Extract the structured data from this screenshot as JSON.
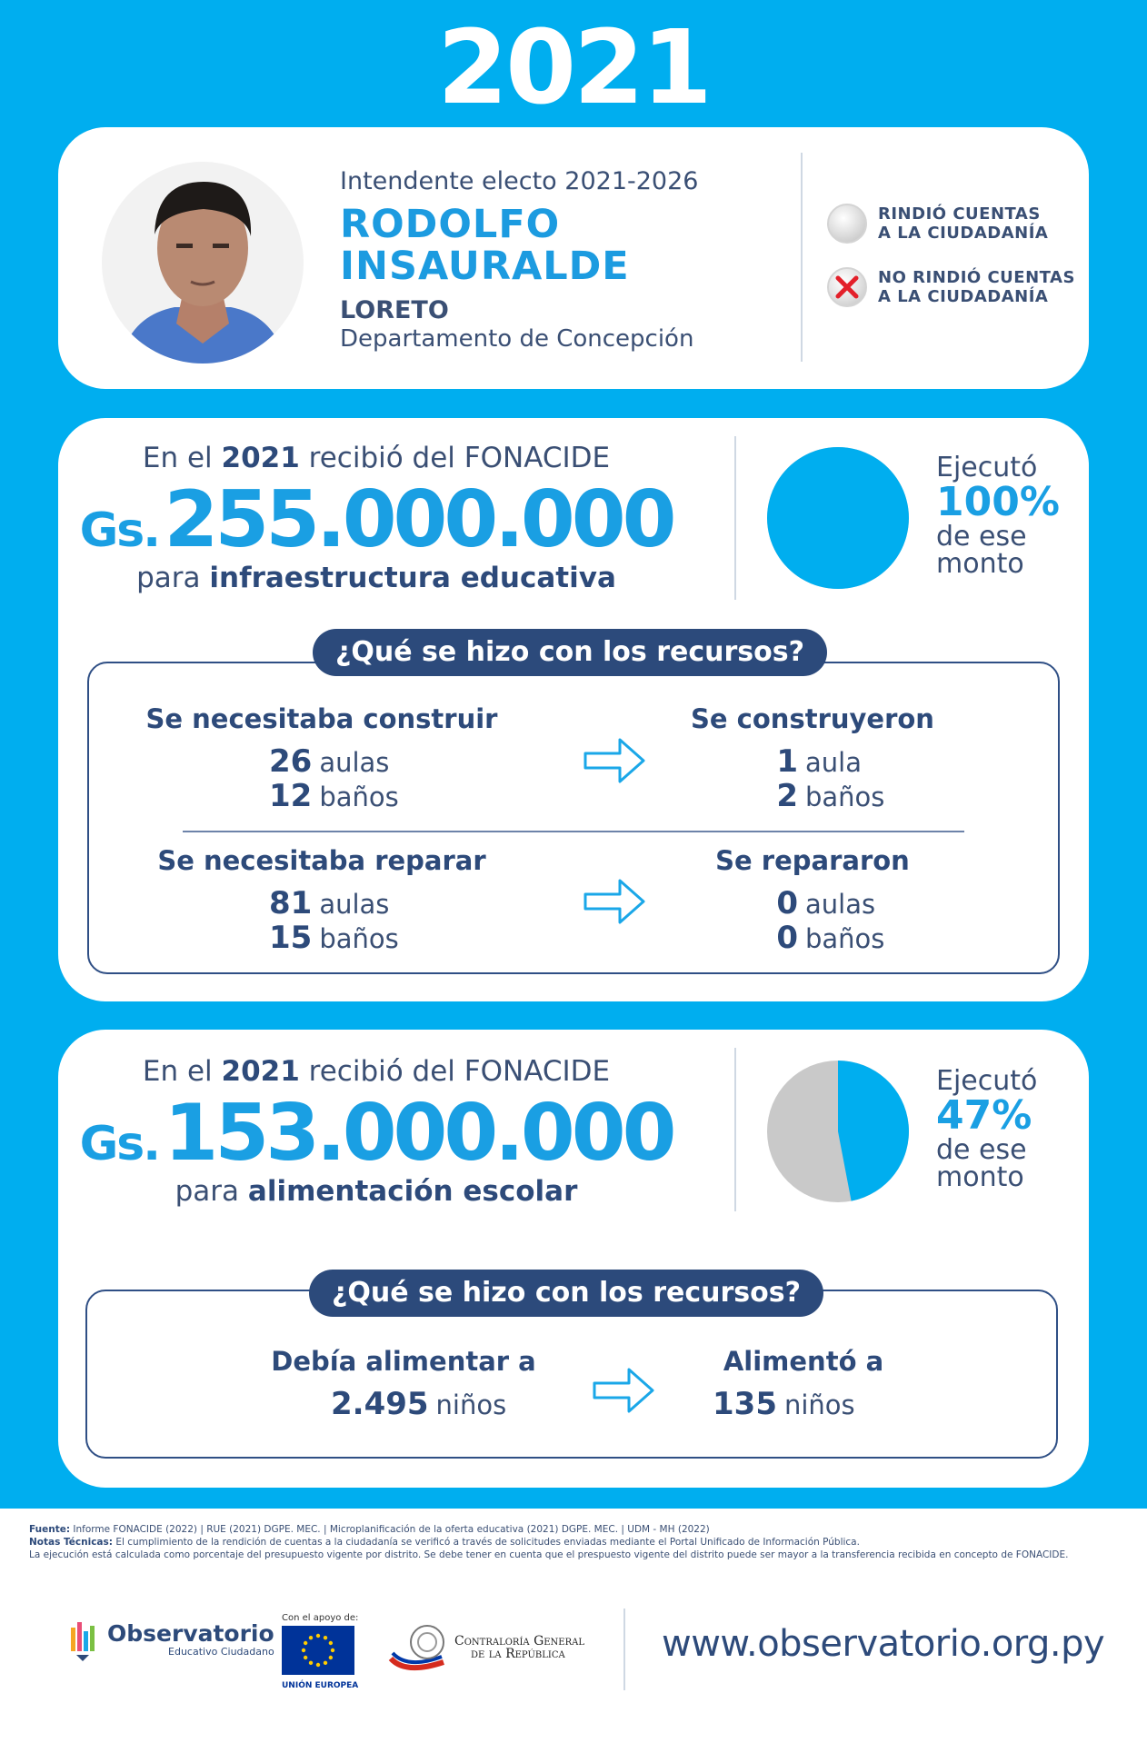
{
  "year": "2021",
  "profile": {
    "role": "Intendente electo 2021-2026",
    "name_line1": "RODOLFO",
    "name_line2": "INSAURALDE",
    "city": "LORETO",
    "department": "Departamento de Concepción"
  },
  "legend": {
    "rendered_label_line1": "RINDIÓ CUENTAS",
    "rendered_label_line2": "A LA CIUDADANÍA",
    "not_rendered_label_line1": "NO RINDIÓ CUENTAS",
    "not_rendered_label_line2": "A LA CIUDADANÍA",
    "colors": {
      "rendered": "#d7d7d7",
      "not_rendered": "#e3202a"
    }
  },
  "infra": {
    "received_prefix": "En el",
    "received_year": "2021",
    "received_suffix": "recibió del FONACIDE",
    "currency": "Gs.",
    "amount": "255.000.000",
    "purpose_prefix": "para",
    "purpose": "infraestructura educativa",
    "executed_label": "Ejecutó",
    "executed_pct_text": "100%",
    "executed_fraction": 1.0,
    "executed_suffix_line1": "de ese",
    "executed_suffix_line2": "monto",
    "section_title": "¿Qué se hizo con los recursos?",
    "needed_build_title": "Se necesitaba construir",
    "needed_build": [
      {
        "value": "26",
        "unit": "aulas"
      },
      {
        "value": "12",
        "unit": "baños"
      }
    ],
    "built_title": "Se construyeron",
    "built": [
      {
        "value": "1",
        "unit": "aula"
      },
      {
        "value": "2",
        "unit": "baños"
      }
    ],
    "needed_repair_title": "Se necesitaba reparar",
    "needed_repair": [
      {
        "value": "81",
        "unit": "aulas"
      },
      {
        "value": "15",
        "unit": "baños"
      }
    ],
    "repaired_title": "Se repararon",
    "repaired": [
      {
        "value": "0",
        "unit": "aulas"
      },
      {
        "value": "0",
        "unit": "baños"
      }
    ]
  },
  "food": {
    "received_prefix": "En el",
    "received_year": "2021",
    "received_suffix": "recibió del FONACIDE",
    "currency": "Gs.",
    "amount": "153.000.000",
    "purpose_prefix": "para",
    "purpose": "alimentación escolar",
    "executed_label": "Ejecutó",
    "executed_pct_text": "47%",
    "executed_fraction": 0.47,
    "executed_suffix_line1": "de ese",
    "executed_suffix_line2": "monto",
    "section_title": "¿Qué se hizo con los recursos?",
    "should_feed_title": "Debía alimentar a",
    "should_feed": {
      "value": "2.495",
      "unit": "niños"
    },
    "fed_title": "Alimentó a",
    "fed": {
      "value": "135",
      "unit": "niños"
    }
  },
  "colors": {
    "blue_bg": "#00aeef",
    "accent": "#1a9fe3",
    "navy": "#2c4a7b",
    "pie_rest": "#c9c9c9"
  },
  "footer": {
    "source_label": "Fuente:",
    "source_text": "Informe FONACIDE (2022) | RUE (2021) DGPE. MEC. | Microplanificación de la oferta educativa (2021) DGPE. MEC. | UDM - MH (2022)",
    "notes_label": "Notas Técnicas:",
    "notes_text": "El cumplimiento de la rendición de cuentas a la ciudadanía se verificó a través de solicitudes enviadas mediante el Portal Unificado de Información Pública.",
    "notes_text2": "La ejecución está calculada como porcentaje del presupuesto vigente por distrito. Se debe tener en cuenta que el prespuesto vigente del distrito puede ser mayor a la transferencia recibida en concepto de FONACIDE.",
    "obs_title": "Observatorio",
    "obs_sub": "Educativo Ciudadano",
    "support_label": "Con el apoyo de:",
    "eu_label": "UNIÓN EUROPEA",
    "cgr_line1": "Contraloría General",
    "cgr_line2": "de la República",
    "url": "www.observatorio.org.py"
  }
}
